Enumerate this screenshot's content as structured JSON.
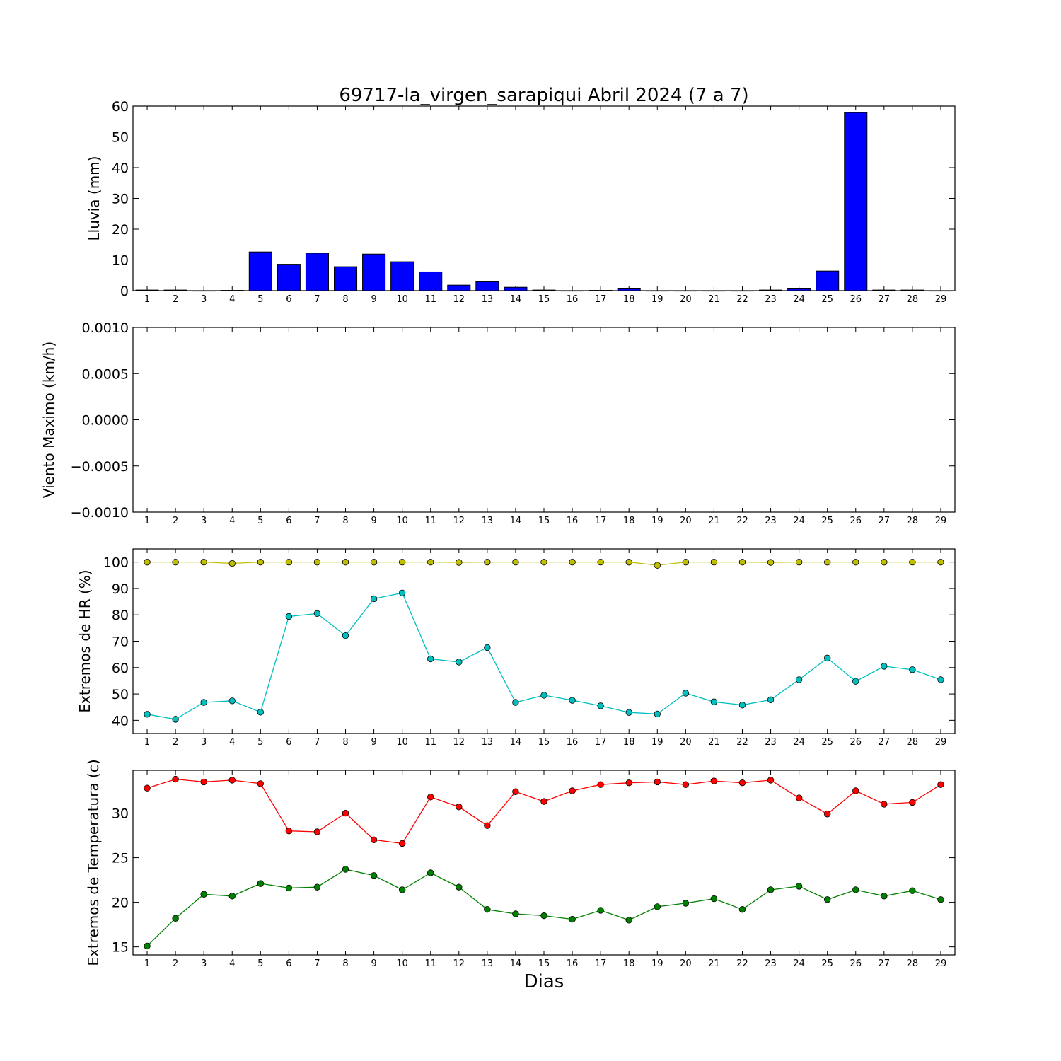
{
  "figure": {
    "title": "69717-la_virgen_sarapiqui Abril 2024  (7 a 7)",
    "xlabel": "Dias"
  },
  "colors": {
    "bar": "#0000ff",
    "hr_max": "#bfbf00",
    "hr_min": "#00bfbf",
    "temp_max": "#ff0000",
    "temp_min": "#008000"
  },
  "chart_data": [
    {
      "id": "rain",
      "type": "bar",
      "ylabel": "Lluvia (mm)",
      "ylim": [
        0,
        60
      ],
      "yticks": [
        0,
        10,
        20,
        30,
        40,
        50,
        60
      ],
      "ytick_labels": [
        "0",
        "10",
        "20",
        "30",
        "40",
        "50",
        "60"
      ],
      "xlim": [
        0.5,
        29.5
      ],
      "x": [
        1,
        2,
        3,
        4,
        5,
        6,
        7,
        8,
        9,
        10,
        11,
        12,
        13,
        14,
        15,
        16,
        17,
        18,
        19,
        20,
        21,
        22,
        23,
        24,
        25,
        26,
        27,
        28,
        29
      ],
      "series": [
        {
          "color": "#0000ff",
          "values": [
            0.2,
            0.2,
            0,
            0.1,
            12.6,
            8.6,
            12.2,
            7.8,
            11.9,
            9.4,
            6.1,
            1.8,
            3.1,
            1.1,
            0.2,
            0,
            0.1,
            0.8,
            0,
            0,
            0,
            0,
            0.2,
            0.8,
            6.4,
            57.9,
            0.2,
            0.2,
            0
          ]
        }
      ]
    },
    {
      "id": "wind",
      "type": "line",
      "ylabel": "Viento Maximo (km/h)",
      "ylim": [
        -0.001,
        0.001
      ],
      "yticks": [
        -0.001,
        -0.0005,
        0,
        0.0005,
        0.001
      ],
      "ytick_labels": [
        "−0.0010",
        "−0.0005",
        "0.0000",
        "0.0005",
        "0.0010"
      ],
      "xlim": [
        0.5,
        29.5
      ],
      "x": [
        1,
        2,
        3,
        4,
        5,
        6,
        7,
        8,
        9,
        10,
        11,
        12,
        13,
        14,
        15,
        16,
        17,
        18,
        19,
        20,
        21,
        22,
        23,
        24,
        25,
        26,
        27,
        28,
        29
      ],
      "series": []
    },
    {
      "id": "humidity",
      "type": "line",
      "ylabel": "Extremos de HR (%)",
      "ylim": [
        35,
        105
      ],
      "yticks": [
        40,
        50,
        60,
        70,
        80,
        90,
        100
      ],
      "ytick_labels": [
        "40",
        "50",
        "60",
        "70",
        "80",
        "90",
        "100"
      ],
      "xlim": [
        0.5,
        29.5
      ],
      "x": [
        1,
        2,
        3,
        4,
        5,
        6,
        7,
        8,
        9,
        10,
        11,
        12,
        13,
        14,
        15,
        16,
        17,
        18,
        19,
        20,
        21,
        22,
        23,
        24,
        25,
        26,
        27,
        28,
        29
      ],
      "series": [
        {
          "color": "#bfbf00",
          "values": [
            100,
            100,
            100,
            99.5,
            100,
            100,
            100,
            100,
            100,
            100,
            100,
            99.9,
            100,
            100,
            100,
            100,
            100,
            100,
            98.8,
            100,
            100,
            100,
            99.9,
            100,
            100,
            100,
            100,
            100,
            100
          ]
        },
        {
          "color": "#00bfbf",
          "values": [
            42.3,
            40.4,
            46.8,
            47.4,
            43.1,
            79.4,
            80.5,
            72.1,
            86.1,
            88.3,
            63.3,
            62.1,
            67.6,
            46.8,
            49.5,
            47.6,
            45.5,
            43,
            42.4,
            50.3,
            47,
            45.8,
            47.8,
            55.4,
            63.6,
            54.8,
            60.5,
            59.2,
            55.4
          ]
        }
      ]
    },
    {
      "id": "temperature",
      "type": "line",
      "ylabel": "Extremos de Temperatura (c)",
      "ylim": [
        14.1,
        34.8
      ],
      "yticks": [
        15,
        20,
        25,
        30
      ],
      "ytick_labels": [
        "15",
        "20",
        "25",
        "30"
      ],
      "xlim": [
        0.5,
        29.5
      ],
      "x": [
        1,
        2,
        3,
        4,
        5,
        6,
        7,
        8,
        9,
        10,
        11,
        12,
        13,
        14,
        15,
        16,
        17,
        18,
        19,
        20,
        21,
        22,
        23,
        24,
        25,
        26,
        27,
        28,
        29
      ],
      "series": [
        {
          "color": "#ff0000",
          "values": [
            32.8,
            33.8,
            33.5,
            33.7,
            33.3,
            28,
            27.9,
            30,
            27,
            26.6,
            31.8,
            30.7,
            28.6,
            32.4,
            31.3,
            32.5,
            33.2,
            33.4,
            33.5,
            33.2,
            33.6,
            33.4,
            33.7,
            31.7,
            29.9,
            32.5,
            31,
            31.2,
            33.2
          ]
        },
        {
          "color": "#008000",
          "values": [
            15.1,
            18.2,
            20.9,
            20.7,
            22.1,
            21.6,
            21.7,
            23.7,
            23,
            21.4,
            23.3,
            21.7,
            19.2,
            18.7,
            18.5,
            18.1,
            19.1,
            18,
            19.5,
            19.9,
            20.4,
            19.2,
            21.4,
            21.8,
            20.3,
            21.4,
            20.7,
            21.3,
            20.3
          ]
        }
      ]
    }
  ]
}
